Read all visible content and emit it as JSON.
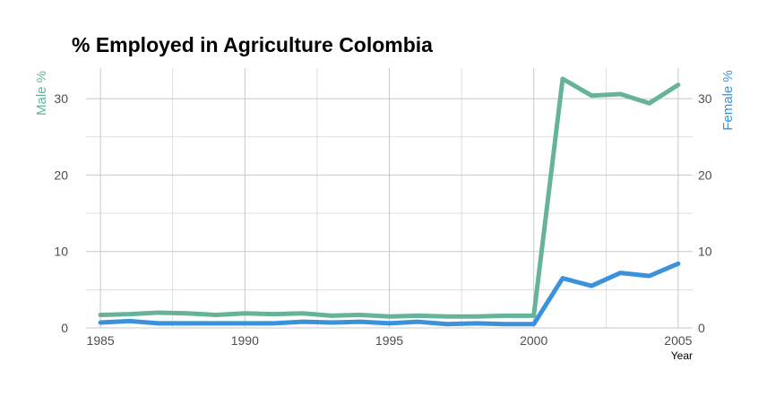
{
  "chart_data": {
    "type": "line",
    "title": "% Employed in Agriculture Colombia",
    "xlabel": "Year",
    "ylabel_left": "Male %",
    "ylabel_right": "Female %",
    "xlim": [
      1984.5,
      2005.5
    ],
    "ylim": [
      0,
      34
    ],
    "x_ticks": [
      1985,
      1990,
      1995,
      2000,
      2005
    ],
    "y_ticks": [
      0,
      10,
      20,
      30
    ],
    "grid": true,
    "legend": "none",
    "x": [
      1985,
      1986,
      1987,
      1988,
      1989,
      1990,
      1991,
      1992,
      1993,
      1994,
      1995,
      1996,
      1997,
      1998,
      1999,
      2000,
      2001,
      2002,
      2003,
      2004,
      2005
    ],
    "series": [
      {
        "name": "Male %",
        "color": "#66b39a",
        "values": [
          1.7,
          1.8,
          2.0,
          1.9,
          1.7,
          1.9,
          1.8,
          1.9,
          1.6,
          1.7,
          1.5,
          1.6,
          1.5,
          1.5,
          1.6,
          1.6,
          32.6,
          30.4,
          30.6,
          29.4,
          31.8
        ]
      },
      {
        "name": "Female %",
        "color": "#3b92dc",
        "values": [
          0.7,
          0.9,
          0.6,
          0.6,
          0.6,
          0.6,
          0.6,
          0.8,
          0.7,
          0.8,
          0.6,
          0.8,
          0.5,
          0.6,
          0.5,
          0.5,
          6.5,
          5.5,
          7.2,
          6.8,
          8.4
        ]
      }
    ]
  }
}
